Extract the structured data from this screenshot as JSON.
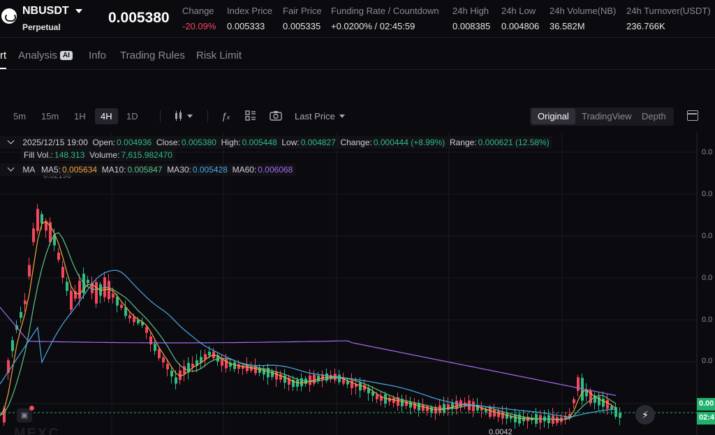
{
  "header": {
    "symbol": "NBUSDT",
    "contract_type": "Perpetual",
    "last_price": "0.005380",
    "stats": [
      {
        "label": "Change",
        "value": "-20.09%"
      },
      {
        "label": "Index Price",
        "value": "0.005333"
      },
      {
        "label": "Fair Price",
        "value": "0.005335"
      },
      {
        "label": "Funding Rate / Countdown",
        "value": "+0.0200% / 02:45:59"
      },
      {
        "label": "24h High",
        "value": "0.008385"
      },
      {
        "label": "24h Low",
        "value": "0.004806"
      },
      {
        "label": "24h Volume(NB)",
        "value": "36.582M"
      },
      {
        "label": "24h Turnover(USDT)",
        "value": "236.766K"
      }
    ]
  },
  "tabs": {
    "chart": "rt",
    "analysis": "Analysis",
    "ai_badge": "AI",
    "info": "Info",
    "trading_rules": "Trading Rules",
    "risk_limit": "Risk Limit"
  },
  "toolbar": {
    "timeframes": [
      "5m",
      "15m",
      "1H",
      "4H",
      "1D"
    ],
    "active_timeframe": "4H",
    "price_source": "Last Price",
    "views": [
      "Original",
      "TradingView",
      "Depth"
    ],
    "active_view": "Original"
  },
  "legend": {
    "datetime": "2025/12/15 19:00",
    "open_label": "Open:",
    "open": "0.004936",
    "close_label": "Close:",
    "close": "0.005380",
    "high_label": "High:",
    "high": "0.005448",
    "low_label": "Low:",
    "low": "0.004827",
    "change_label": "Change:",
    "change": "0.000444 (+8.99%)",
    "range_label": "Range:",
    "range": "0.000621 (12.58%)",
    "fill_vol_label": "Fill Vol.:",
    "fill_vol": "148.313",
    "volume_label": "Volume:",
    "volume": "7,615.982470",
    "ma_label": "MA",
    "ma5_label": "MA5:",
    "ma5": "0.005634",
    "ma10_label": "MA10:",
    "ma10": "0.005847",
    "ma30_label": "MA30:",
    "ma30": "0.005428",
    "ma60_label": "MA60:",
    "ma60": "0.006068"
  },
  "chart": {
    "high_marker": "0.02196",
    "low_marker": "0.0042",
    "price_tag": "0.00",
    "countdown_tag": "02:4",
    "axis_prefix": "0.0",
    "watermark": "MEXC",
    "colors": {
      "up": "#2ebd85",
      "down": "#f6465d",
      "ma5": "#f0a63a",
      "ma10": "#5ec28a",
      "ma30": "#4aa8e6",
      "ma60": "#a56bf0"
    }
  }
}
